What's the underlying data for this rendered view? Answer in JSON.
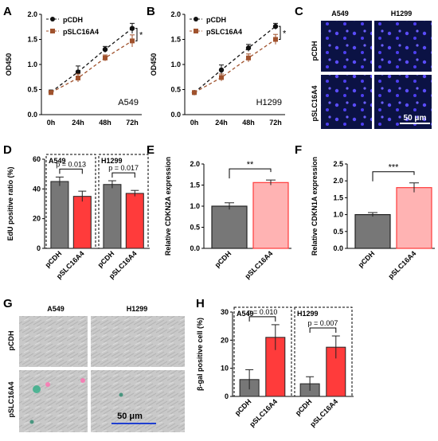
{
  "panels": {
    "A": "A",
    "B": "B",
    "C": "C",
    "D": "D",
    "E": "E",
    "F": "F",
    "G": "G",
    "H": "H"
  },
  "colors": {
    "pcdh": "#111111",
    "pslc": "#a0522d",
    "bar_gray": "#777777",
    "bar_red": "#ff3b3b",
    "bar_pink": "#ffb3b3",
    "micro_bg": "#0a0f3a",
    "micro_cell": "#4a3dff",
    "bf_bg": "#c8c8c8"
  },
  "chart_data": [
    {
      "id": "A",
      "type": "line",
      "ylabel": "OD450",
      "cell_line": "A549",
      "categories": [
        "0h",
        "24h",
        "48h",
        "72h"
      ],
      "ylim": [
        0,
        2.0
      ],
      "yticks": [
        0.0,
        0.5,
        1.0,
        1.5,
        2.0
      ],
      "series": [
        {
          "name": "pCDH",
          "values": [
            0.45,
            0.85,
            1.3,
            1.72
          ],
          "err": [
            0.04,
            0.12,
            0.06,
            0.1
          ]
        },
        {
          "name": "pSLC16A4",
          "values": [
            0.44,
            0.73,
            1.13,
            1.47
          ],
          "err": [
            0.04,
            0.08,
            0.06,
            0.12
          ]
        }
      ],
      "annotation": "*"
    },
    {
      "id": "B",
      "type": "line",
      "ylabel": "OD450",
      "cell_line": "H1299",
      "categories": [
        "0h",
        "24h",
        "48h",
        "72h"
      ],
      "ylim": [
        0,
        2.0
      ],
      "yticks": [
        0.0,
        0.5,
        1.0,
        1.5,
        2.0
      ],
      "series": [
        {
          "name": "pCDH",
          "values": [
            0.44,
            0.89,
            1.33,
            1.76
          ],
          "err": [
            0.03,
            0.1,
            0.07,
            0.06
          ]
        },
        {
          "name": "pSLC16A4",
          "values": [
            0.44,
            0.74,
            1.13,
            1.5
          ],
          "err": [
            0.03,
            0.07,
            0.08,
            0.1
          ]
        }
      ],
      "annotation": "*"
    },
    {
      "id": "D",
      "type": "bar",
      "ylabel": "EdU positive ratio (%)",
      "ylim": [
        0,
        60
      ],
      "yticks": [
        0,
        20,
        40,
        60
      ],
      "groups": [
        {
          "name": "A549",
          "pvalue": "p = 0.013",
          "categories": [
            "pCDH",
            "pSLC16A4"
          ],
          "values": [
            45,
            35
          ],
          "err": [
            3,
            3.5
          ]
        },
        {
          "name": "H1299",
          "pvalue": "p = 0.017",
          "categories": [
            "pCDH",
            "pSLC16A4"
          ],
          "values": [
            43,
            37
          ],
          "err": [
            2.5,
            2
          ]
        }
      ]
    },
    {
      "id": "E",
      "type": "bar",
      "ylabel": "Relative CDKN2A expression",
      "ylim": [
        0,
        2.0
      ],
      "yticks": [
        0.0,
        0.5,
        1.0,
        1.5,
        2.0
      ],
      "categories": [
        "pCDH",
        "pSLC16A4"
      ],
      "values": [
        1.0,
        1.56
      ],
      "err": [
        0.08,
        0.06
      ],
      "annotation": "**"
    },
    {
      "id": "F",
      "type": "bar",
      "ylabel": "Relative CDKN1A expression",
      "ylim": [
        0,
        2.5
      ],
      "yticks": [
        0.0,
        0.5,
        1.0,
        1.5,
        2.0,
        2.5
      ],
      "categories": [
        "pCDH",
        "pSLC16A4"
      ],
      "values": [
        1.0,
        1.8
      ],
      "err": [
        0.06,
        0.14
      ],
      "annotation": "***"
    },
    {
      "id": "H",
      "type": "bar",
      "ylabel": "β-gal positive cell (%)",
      "ylim": [
        0,
        30
      ],
      "yticks": [
        0,
        10,
        20,
        30
      ],
      "groups": [
        {
          "name": "A549",
          "pvalue": "p = 0.010",
          "categories": [
            "pCDH",
            "pSLC16A4"
          ],
          "values": [
            6,
            21
          ],
          "err": [
            3.5,
            4.5
          ]
        },
        {
          "name": "H1299",
          "pvalue": "p = 0.007",
          "categories": [
            "pCDH",
            "pSLC16A4"
          ],
          "values": [
            4.5,
            17.5
          ],
          "err": [
            2.5,
            4
          ]
        }
      ]
    }
  ],
  "micrographs": {
    "C": {
      "cols": [
        "A549",
        "H1299"
      ],
      "rows": [
        "pCDH",
        "pSLC16A4"
      ],
      "scale": "50 μm"
    },
    "G": {
      "cols": [
        "A549",
        "H1299"
      ],
      "rows": [
        "pCDH",
        "pSLC16A4"
      ],
      "scale": "50 μm"
    }
  }
}
